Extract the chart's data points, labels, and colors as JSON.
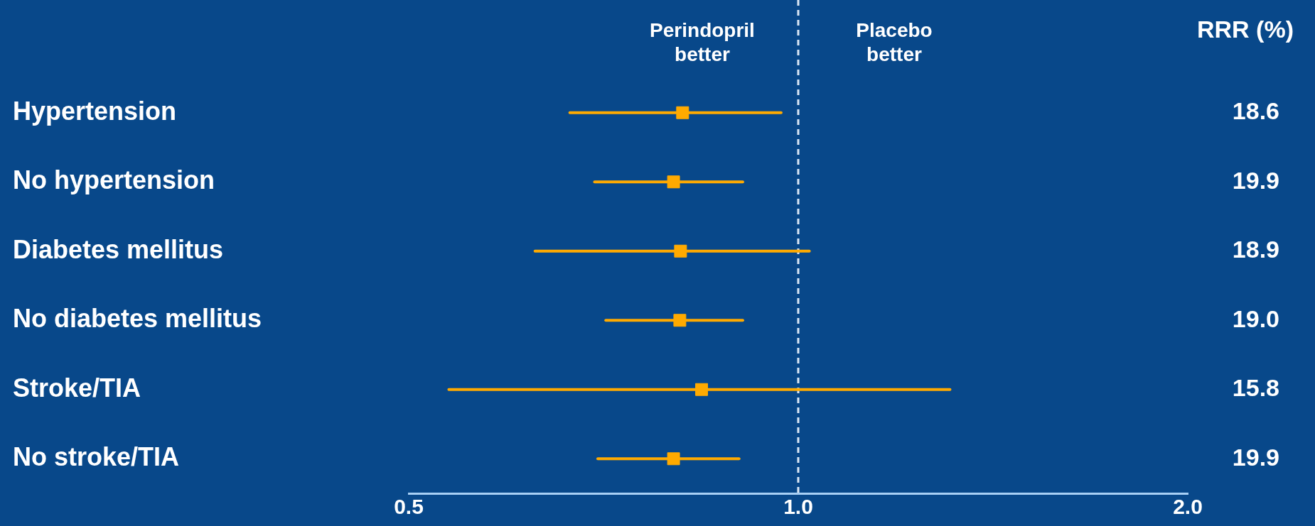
{
  "chart_data": {
    "type": "scatter",
    "orientation": "horizontal",
    "marker": "square",
    "log": "x",
    "categories": [
      "Hypertension",
      "No hypertension",
      "Diabetes mellitus",
      "No diabetes mellitus",
      "Stroke/TIA",
      "No stroke/TIA"
    ],
    "series": [
      {
        "color": "#ffaa00",
        "values": [
          0.814,
          0.801,
          0.811,
          0.81,
          0.842,
          0.801
        ],
        "errors": [
          [
            0.666,
            0.97
          ],
          [
            0.696,
            0.906
          ],
          [
            0.626,
            1.02
          ],
          [
            0.71,
            0.906
          ],
          [
            0.537,
            1.31
          ],
          [
            0.7,
            0.9
          ]
        ]
      }
    ],
    "xlim": [
      0.5,
      2.0
    ],
    "xticks": [
      {
        "value": 0.5,
        "label": "0.5"
      },
      {
        "value": 1,
        "label": "1.0"
      },
      {
        "value": 2,
        "label": "2.0"
      }
    ],
    "ref_lines": [
      {
        "axis": "x",
        "value": 1,
        "color": "#dce8f5",
        "line_style": "dashed"
      }
    ],
    "annotations": [
      "Perindopril\nbetter",
      "Placebo\nbetter",
      "RRR (%)",
      "18.6",
      "19.9",
      "18.9",
      "19.0",
      "15.8",
      "19.9"
    ],
    "grid": false,
    "legend": false
  }
}
